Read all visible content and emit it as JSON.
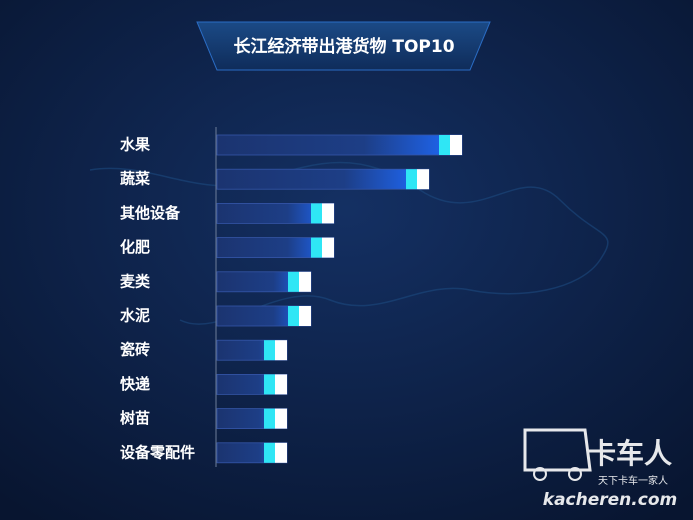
{
  "chart_data": {
    "type": "hbar",
    "title": "长江经济带出港货物 TOP10",
    "categories": [
      "水果",
      "蔬菜",
      "其他设备",
      "化肥",
      "麦类",
      "水泥",
      "瓷砖",
      "快递",
      "树苗",
      "设备零配件"
    ],
    "values": [
      245,
      212,
      117,
      117,
      94,
      94,
      70,
      70,
      70,
      70
    ],
    "xlim": [
      0,
      250
    ],
    "color": "#1f6bff"
  },
  "watermark": {
    "brand": "卡车人",
    "slogan": "天下卡车一家人",
    "site": "kacheren.com"
  }
}
